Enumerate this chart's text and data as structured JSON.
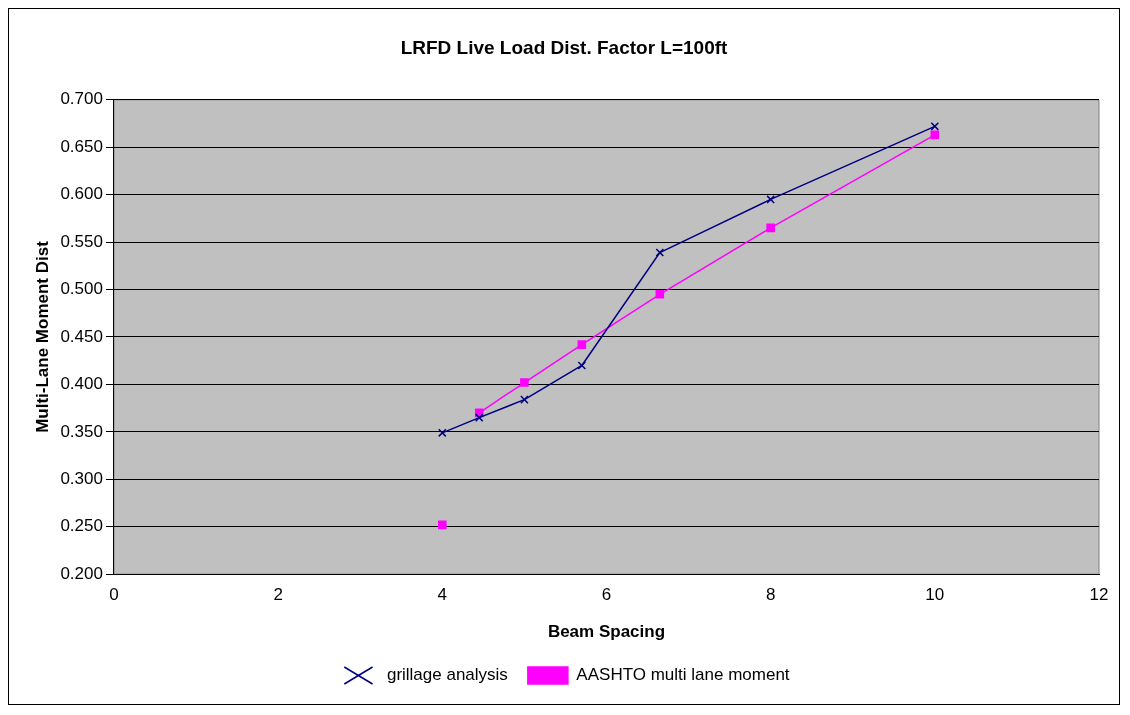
{
  "chart_data": {
    "type": "line",
    "title": "LRFD Live Load Dist. Factor L=100ft",
    "xlabel": "Beam Spacing",
    "ylabel": "Multi-Lane Moment Dist",
    "series": [
      {
        "name": "AASHTO multi lane moment",
        "color": "#ff00ff",
        "marker": "square",
        "x": [
          4.45,
          5,
          5.7,
          6.65,
          8,
          10
        ],
        "values": [
          0.37,
          0.402,
          0.442,
          0.495,
          0.565,
          0.663
        ]
      },
      {
        "type": "scatter",
        "color": "#ff00ff",
        "marker": "square",
        "x": [
          4
        ],
        "values": [
          0.252
        ]
      },
      {
        "name": "grillage analysis",
        "color": "#000080",
        "marker": "cross",
        "x": [
          4,
          4.45,
          5,
          5.7,
          6.65,
          8,
          10
        ],
        "values": [
          0.349,
          0.365,
          0.384,
          0.42,
          0.539,
          0.595,
          0.672
        ]
      }
    ],
    "xlim": [
      0,
      12
    ],
    "xticks": [
      0,
      2,
      4,
      6,
      8,
      10,
      12
    ],
    "ylim": [
      0.2,
      0.7
    ],
    "yticks": [
      {
        "value": 0.2,
        "label": "0.200"
      },
      {
        "value": 0.25,
        "label": "0.250"
      },
      {
        "value": 0.3,
        "label": "0.300"
      },
      {
        "value": 0.35,
        "label": "0.350"
      },
      {
        "value": 0.4,
        "label": "0.400"
      },
      {
        "value": 0.45,
        "label": "0.450"
      },
      {
        "value": 0.5,
        "label": "0.500"
      },
      {
        "value": 0.55,
        "label": "0.550"
      },
      {
        "value": 0.6,
        "label": "0.600"
      },
      {
        "value": 0.65,
        "label": "0.650"
      },
      {
        "value": 0.7,
        "label": "0.700"
      }
    ],
    "grid": "y",
    "legend": "bottom"
  }
}
